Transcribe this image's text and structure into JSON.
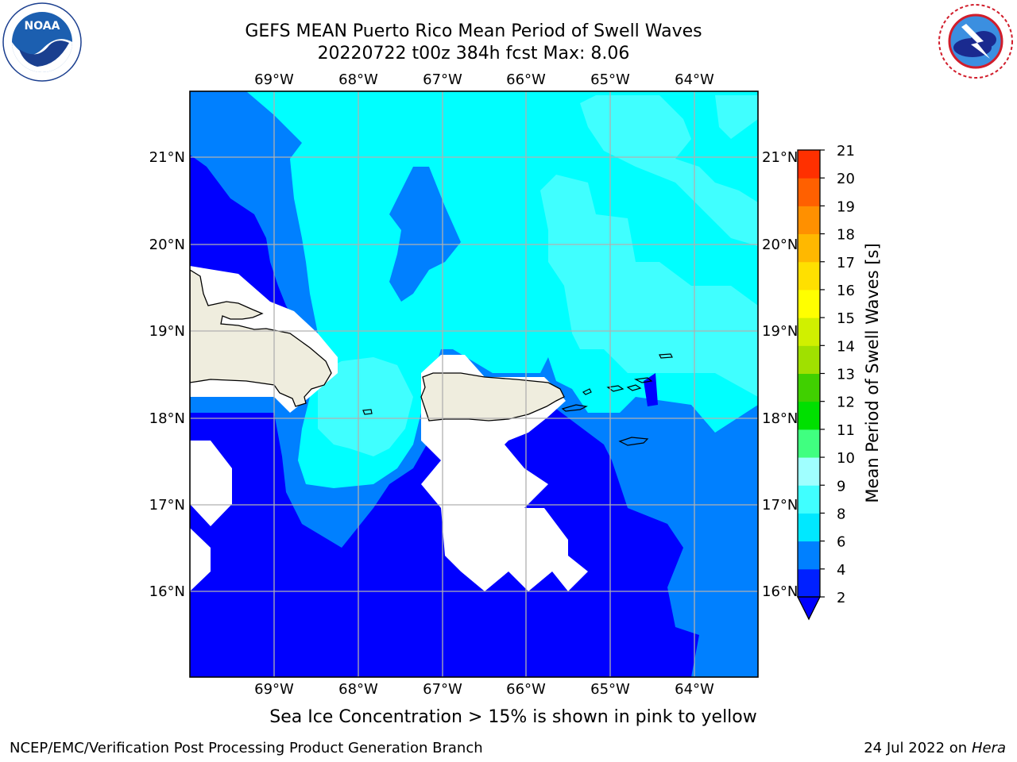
{
  "title_line1": "GEFS MEAN Puerto Rico Mean Period of Swell Waves",
  "title_line2": "20220722 t00z 384h fcst   Max: 8.06",
  "lon_labels": [
    "69°W",
    "68°W",
    "67°W",
    "66°W",
    "65°W",
    "64°W"
  ],
  "lat_labels": [
    "21°N",
    "20°N",
    "19°N",
    "18°N",
    "17°N",
    "16°N"
  ],
  "colorbar": {
    "label": "Mean Period of Swell Waves [s]",
    "ticks": [
      "2",
      "4",
      "6",
      "8",
      "9",
      "10",
      "11",
      "12",
      "13",
      "14",
      "15",
      "16",
      "17",
      "18",
      "19",
      "20",
      "21"
    ],
    "colors": [
      "#0020ff",
      "#0080ff",
      "#00e8ff",
      "#40ffff",
      "#a0ffff",
      "#40ff80",
      "#00e000",
      "#40d000",
      "#a0e000",
      "#d0f000",
      "#ffff00",
      "#ffe000",
      "#ffb800",
      "#ff9000",
      "#ff6000",
      "#ff3000",
      "#ff0000"
    ],
    "under_color": "#0000ff"
  },
  "map": {
    "lon_range": [
      -70,
      -63.25
    ],
    "lat_range": [
      15,
      21.75
    ],
    "land_color": "#efedde",
    "grid_color": "#b0b0b0"
  },
  "subtitle": "Sea Ice Concentration > 15% is shown in pink to yellow",
  "footer_left": "NCEP/EMC/Verification Post Processing Product Generation Branch",
  "footer_date": "24 Jul 2022 on ",
  "footer_machine": "Hera"
}
